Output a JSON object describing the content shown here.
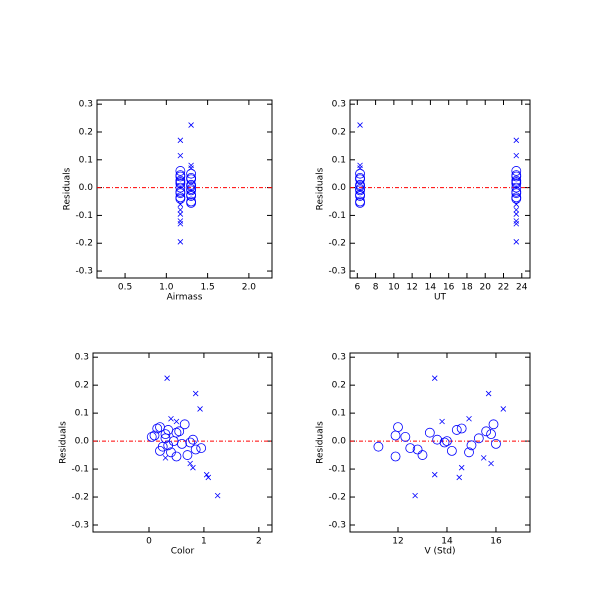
{
  "chart_data": [
    {
      "type": "scatter",
      "xlabel": "Airmass",
      "ylabel": "Residuals",
      "xlim": [
        0.16,
        2.28
      ],
      "ylim": [
        -0.325,
        0.315
      ],
      "xticks": [
        0.5,
        {
          "value": 1,
          "label": "1.0"
        },
        1.5,
        {
          "value": 2,
          "label": "2.0"
        }
      ],
      "yticks": [
        -0.3,
        -0.2,
        -0.1,
        {
          "value": 0,
          "label": "0.0"
        },
        0.1,
        0.2,
        0.3
      ],
      "hline": 0,
      "hline_color": "#ff0000",
      "series": [
        {
          "marker": "circle",
          "color": "#0000ff",
          "x": [
            1.17,
            1.3,
            1.17,
            1.3,
            1.17,
            1.3,
            1.17,
            1.3,
            1.17,
            1.3,
            1.17,
            1.3,
            1.17,
            1.3,
            1.17,
            1.3,
            1.17,
            1.3,
            1.17,
            1.3,
            1.17,
            1.3
          ],
          "values": [
            0.06,
            0.05,
            0.04,
            0.03,
            0.02,
            0.01,
            0.0,
            -0.01,
            -0.02,
            -0.03,
            -0.04,
            -0.05,
            0.045,
            0.035,
            0.015,
            -0.005,
            -0.015,
            -0.025,
            -0.035,
            -0.055,
            0.025,
            0.005
          ]
        },
        {
          "marker": "x",
          "color": "#0000ff",
          "x": [
            1.3,
            1.17,
            1.17,
            1.3,
            1.3,
            1.17,
            1.17,
            1.17,
            1.17,
            1.17,
            1.17
          ],
          "values": [
            0.225,
            0.17,
            0.115,
            0.08,
            0.07,
            -0.06,
            -0.08,
            -0.095,
            -0.12,
            -0.13,
            -0.195
          ]
        }
      ]
    },
    {
      "type": "scatter",
      "xlabel": "UT",
      "ylabel": "Residuals",
      "xlim": [
        5.2,
        24.9
      ],
      "ylim": [
        -0.325,
        0.315
      ],
      "xticks": [
        6,
        8,
        10,
        12,
        14,
        16,
        18,
        20,
        22,
        24
      ],
      "yticks": [
        -0.3,
        -0.2,
        -0.1,
        {
          "value": 0,
          "label": "0.0"
        },
        0.1,
        0.2,
        0.3
      ],
      "hline": 0,
      "hline_color": "#ff0000",
      "series": [
        {
          "marker": "circle",
          "color": "#0000ff",
          "x": [
            23.4,
            6.3,
            23.4,
            6.3,
            23.4,
            6.3,
            23.4,
            6.3,
            23.4,
            6.3,
            23.4,
            6.3,
            23.4,
            6.3,
            23.4,
            6.3,
            23.4,
            6.3,
            23.4,
            6.3,
            23.4,
            6.3
          ],
          "values": [
            0.06,
            0.05,
            0.04,
            0.03,
            0.02,
            0.01,
            0.0,
            -0.01,
            -0.02,
            -0.03,
            -0.04,
            -0.05,
            0.045,
            0.035,
            0.015,
            -0.005,
            -0.015,
            -0.025,
            -0.035,
            -0.055,
            0.025,
            0.005
          ]
        },
        {
          "marker": "x",
          "color": "#0000ff",
          "x": [
            6.3,
            23.4,
            23.4,
            6.3,
            6.3,
            23.4,
            23.4,
            23.4,
            23.4,
            23.4,
            23.4
          ],
          "values": [
            0.225,
            0.17,
            0.115,
            0.08,
            0.07,
            -0.06,
            -0.08,
            -0.095,
            -0.12,
            -0.13,
            -0.195
          ]
        }
      ]
    },
    {
      "type": "scatter",
      "xlabel": "Color",
      "ylabel": "Residuals",
      "xlim": [
        -1.02,
        2.24
      ],
      "ylim": [
        -0.325,
        0.315
      ],
      "xticks": [
        0,
        1,
        2
      ],
      "yticks": [
        -0.3,
        -0.2,
        -0.1,
        {
          "value": 0,
          "label": "0.0"
        },
        0.1,
        0.2,
        0.3
      ],
      "hline": 0,
      "hline_color": "#ff0000",
      "series": [
        {
          "marker": "circle",
          "color": "#0000ff",
          "x": [
            0.65,
            0.2,
            0.35,
            0.5,
            0.1,
            0.3,
            0.45,
            0.6,
            0.25,
            0.85,
            0.4,
            0.7,
            0.15,
            0.55,
            0.05,
            0.75,
            0.35,
            0.95,
            0.2,
            0.5,
            0.3,
            0.8
          ],
          "values": [
            0.06,
            0.05,
            0.04,
            0.03,
            0.02,
            0.01,
            0.0,
            -0.01,
            -0.02,
            -0.03,
            -0.04,
            -0.05,
            0.045,
            0.035,
            0.015,
            -0.005,
            -0.015,
            -0.025,
            -0.035,
            -0.055,
            0.025,
            0.005
          ]
        },
        {
          "marker": "x",
          "color": "#0000ff",
          "x": [
            0.33,
            0.85,
            0.93,
            0.4,
            0.5,
            0.3,
            0.75,
            0.8,
            1.05,
            1.08,
            1.25
          ],
          "values": [
            0.225,
            0.17,
            0.115,
            0.08,
            0.07,
            -0.06,
            -0.08,
            -0.095,
            -0.12,
            -0.13,
            -0.195
          ]
        }
      ]
    },
    {
      "type": "scatter",
      "xlabel": "V (Std)",
      "ylabel": "Residuals",
      "xlim": [
        10.04,
        17.39
      ],
      "ylim": [
        -0.325,
        0.315
      ],
      "xticks": [
        12,
        14,
        16
      ],
      "yticks": [
        -0.3,
        -0.2,
        -0.1,
        {
          "value": 0,
          "label": "0.0"
        },
        0.1,
        0.2,
        0.3
      ],
      "hline": 0,
      "hline_color": "#ff0000",
      "series": [
        {
          "marker": "circle",
          "color": "#0000ff",
          "x": [
            15.9,
            12.0,
            14.4,
            13.3,
            11.9,
            15.3,
            14.0,
            16.0,
            11.2,
            12.8,
            14.9,
            13.0,
            14.6,
            15.6,
            12.3,
            13.9,
            15.0,
            12.5,
            14.2,
            11.9,
            15.8,
            13.6
          ],
          "values": [
            0.06,
            0.05,
            0.04,
            0.03,
            0.02,
            0.01,
            0.0,
            -0.01,
            -0.02,
            -0.03,
            -0.04,
            -0.05,
            0.045,
            0.035,
            0.015,
            -0.005,
            -0.015,
            -0.025,
            -0.035,
            -0.055,
            0.025,
            0.005
          ]
        },
        {
          "marker": "x",
          "color": "#0000ff",
          "x": [
            13.5,
            15.7,
            16.3,
            14.9,
            13.8,
            15.5,
            15.8,
            14.6,
            13.5,
            14.5,
            12.7
          ],
          "values": [
            0.225,
            0.17,
            0.115,
            0.08,
            0.07,
            -0.06,
            -0.08,
            -0.095,
            -0.12,
            -0.13,
            -0.195
          ]
        }
      ]
    }
  ]
}
